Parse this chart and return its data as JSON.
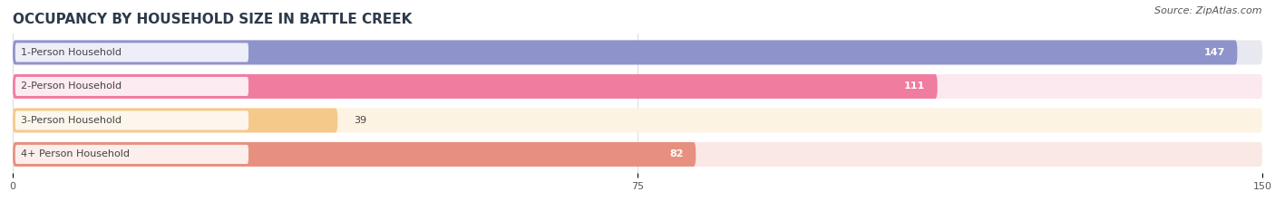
{
  "title": "OCCUPANCY BY HOUSEHOLD SIZE IN BATTLE CREEK",
  "source": "Source: ZipAtlas.com",
  "categories": [
    "1-Person Household",
    "2-Person Household",
    "3-Person Household",
    "4+ Person Household"
  ],
  "values": [
    147,
    111,
    39,
    82
  ],
  "bar_colors": [
    "#8f93cc",
    "#f07ca0",
    "#f5c98a",
    "#e89080"
  ],
  "bar_bg_colors": [
    "#e8e8f0",
    "#fce8ef",
    "#fdf3e3",
    "#fae8e5"
  ],
  "xlim": [
    0,
    150
  ],
  "xticks": [
    0,
    75,
    150
  ],
  "bar_height": 0.72,
  "figsize": [
    14.06,
    2.33
  ],
  "dpi": 100,
  "title_fontsize": 11,
  "label_fontsize": 8.0,
  "value_fontsize": 8.0,
  "source_fontsize": 8,
  "background_color": "#ffffff",
  "label_box_color": "#ffffff",
  "label_text_color": "#444444",
  "grid_color": "#dddddd"
}
